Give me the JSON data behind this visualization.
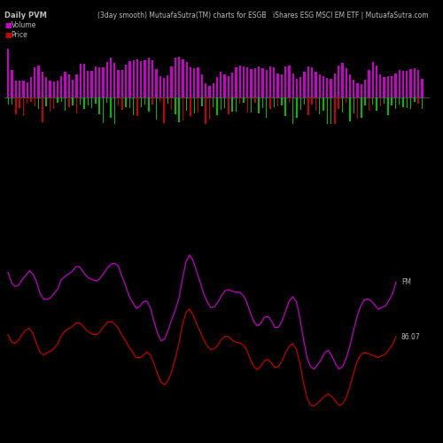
{
  "title_left": "Daily PVM",
  "title_center": "(3day smooth) MutuafaSutra(TM) charts for ESGE",
  "title_right": "iShares ESG MSCI EM ETF | MutuafaSutra.com",
  "label_fm": "FM",
  "label_price_end": "86.07",
  "bg_color": "#000000",
  "volume_color": "#cc00cc",
  "bar_color_green": "#00bb00",
  "bar_color_red": "#cc0000",
  "line_color_fm": "#cc00cc",
  "line_color_price": "#cc0000",
  "text_color": "#bbbbbb",
  "n_bars": 110,
  "seed": 7
}
